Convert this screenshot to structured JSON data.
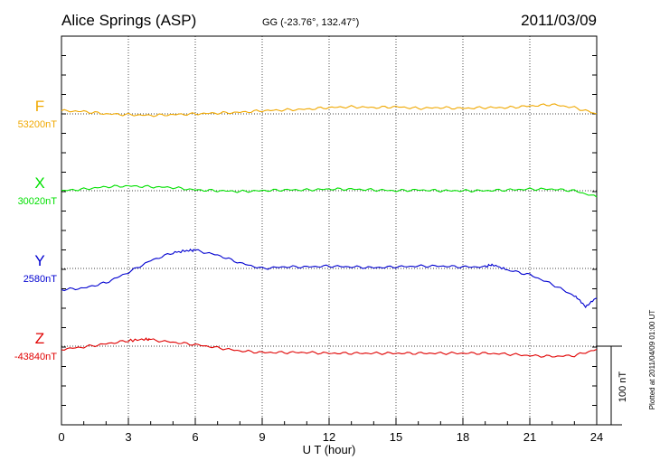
{
  "header": {
    "station": "Alice Springs (ASP)",
    "coords": "GG (-23.76°, 132.47°)",
    "date": "2011/03/09"
  },
  "footer_note": "Plotted at 2011/04/09 01:00 UT",
  "scale_label": "100 nT",
  "chart_data": {
    "type": "line",
    "xlabel": "U T (hour)",
    "xlim": [
      0,
      24
    ],
    "xticks": [
      "0",
      "3",
      "6",
      "9",
      "12",
      "15",
      "18",
      "21",
      "24"
    ],
    "grid": true,
    "y_unit": "nT",
    "scale_bar_nT": 100,
    "series": [
      {
        "name": "F",
        "baseline_label": "53200nT",
        "baseline": 53200,
        "color": "#f0a800",
        "x": [
          0,
          1,
          2,
          3,
          4,
          5,
          6,
          7,
          8,
          9,
          10,
          11,
          12,
          13,
          14,
          15,
          16,
          17,
          18,
          19,
          20,
          21,
          22,
          23,
          24
        ],
        "values": [
          53204,
          53203,
          53200,
          53199,
          53198,
          53199,
          53200,
          53201,
          53202,
          53204,
          53205,
          53206,
          53208,
          53209,
          53208,
          53209,
          53207,
          53208,
          53207,
          53208,
          53208,
          53210,
          53212,
          53208,
          53200
        ]
      },
      {
        "name": "X",
        "baseline_label": "30020nT",
        "baseline": 30020,
        "color": "#00e000",
        "x": [
          0,
          1,
          2,
          3,
          4,
          5,
          6,
          7,
          8,
          9,
          10,
          11,
          12,
          13,
          14,
          15,
          16,
          17,
          18,
          19,
          20,
          21,
          22,
          23,
          24
        ],
        "values": [
          30020,
          30022,
          30025,
          30026,
          30025,
          30024,
          30021,
          30020,
          30019,
          30020,
          30021,
          30021,
          30022,
          30022,
          30021,
          30020,
          30021,
          30020,
          30020,
          30020,
          30021,
          30022,
          30022,
          30020,
          30012
        ]
      },
      {
        "name": "Y",
        "baseline_label": "2580nT",
        "baseline": 2580,
        "color": "#0000d0",
        "x": [
          0,
          1,
          2,
          3,
          4,
          5,
          5.7,
          6,
          7,
          8,
          9,
          10,
          11,
          12,
          13,
          14,
          15,
          16,
          17,
          18,
          19,
          19.3,
          20,
          21,
          22,
          23,
          23.5,
          24
        ],
        "values": [
          2553,
          2555,
          2562,
          2575,
          2590,
          2600,
          2603,
          2603,
          2597,
          2587,
          2580,
          2582,
          2582,
          2583,
          2582,
          2581,
          2582,
          2583,
          2583,
          2582,
          2582,
          2585,
          2578,
          2572,
          2560,
          2545,
          2532,
          2542
        ]
      },
      {
        "name": "Z",
        "baseline_label": "-43840nT",
        "baseline": -43840,
        "color": "#e00000",
        "x": [
          0,
          1,
          2,
          3,
          3.8,
          4,
          5,
          6,
          7,
          8,
          9,
          10,
          11,
          12,
          13,
          14,
          15,
          16,
          17,
          18,
          19,
          20,
          21,
          22,
          23,
          24
        ],
        "values": [
          -43844,
          -43841,
          -43837,
          -43833,
          -43831,
          -43832,
          -43835,
          -43838,
          -43842,
          -43846,
          -43848,
          -43848,
          -43848,
          -43849,
          -43849,
          -43849,
          -43849,
          -43849,
          -43849,
          -43849,
          -43849,
          -43850,
          -43852,
          -43853,
          -43852,
          -43844
        ]
      }
    ]
  }
}
